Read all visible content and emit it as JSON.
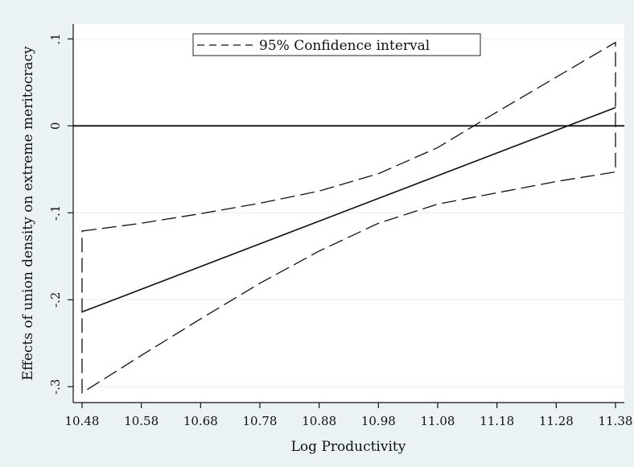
{
  "chart_data": {
    "type": "line",
    "title": "",
    "xlabel": "Log Productivity",
    "ylabel": "Effects of union density on extreme meritocracy",
    "x_ticks": [
      10.48,
      10.58,
      10.68,
      10.78,
      10.88,
      10.98,
      11.08,
      11.18,
      11.28,
      11.38
    ],
    "x_tick_labels": [
      "10.48",
      "10.58",
      "10.68",
      "10.78",
      "10.88",
      "10.98",
      "11.08",
      "11.18",
      "11.28",
      "11.38"
    ],
    "y_ticks": [
      0.1,
      0,
      -0.1,
      -0.2,
      -0.3
    ],
    "y_tick_labels": [
      ".1",
      "0",
      "-.1",
      "-.2",
      "-.3"
    ],
    "xlim": [
      10.48,
      11.38
    ],
    "ylim": [
      -0.309,
      0.104
    ],
    "grid": "horizontal",
    "reference_line_y": 0,
    "legend": {
      "position": "top-center",
      "entries": [
        {
          "label": "95% Confidence interval",
          "style": "dashed"
        }
      ]
    },
    "series": [
      {
        "style": "solid",
        "x": [
          10.48,
          11.38
        ],
        "y": [
          -0.214,
          0.021
        ]
      },
      {
        "name": "95% Confidence interval",
        "style": "dashed",
        "x": [
          10.48,
          10.58,
          10.68,
          10.78,
          10.88,
          10.98,
          11.08,
          11.18,
          11.28,
          11.38
        ],
        "y": [
          -0.121,
          -0.112,
          -0.101,
          -0.089,
          -0.075,
          -0.055,
          -0.025,
          0.016,
          0.056,
          0.096
        ]
      },
      {
        "name": "95% Confidence interval",
        "style": "dashed",
        "x": [
          10.48,
          10.58,
          10.68,
          10.78,
          10.88,
          10.98,
          11.08,
          11.18,
          11.28,
          11.38
        ],
        "y": [
          -0.307,
          -0.264,
          -0.222,
          -0.181,
          -0.144,
          -0.112,
          -0.09,
          -0.077,
          -0.064,
          -0.053
        ]
      }
    ]
  }
}
